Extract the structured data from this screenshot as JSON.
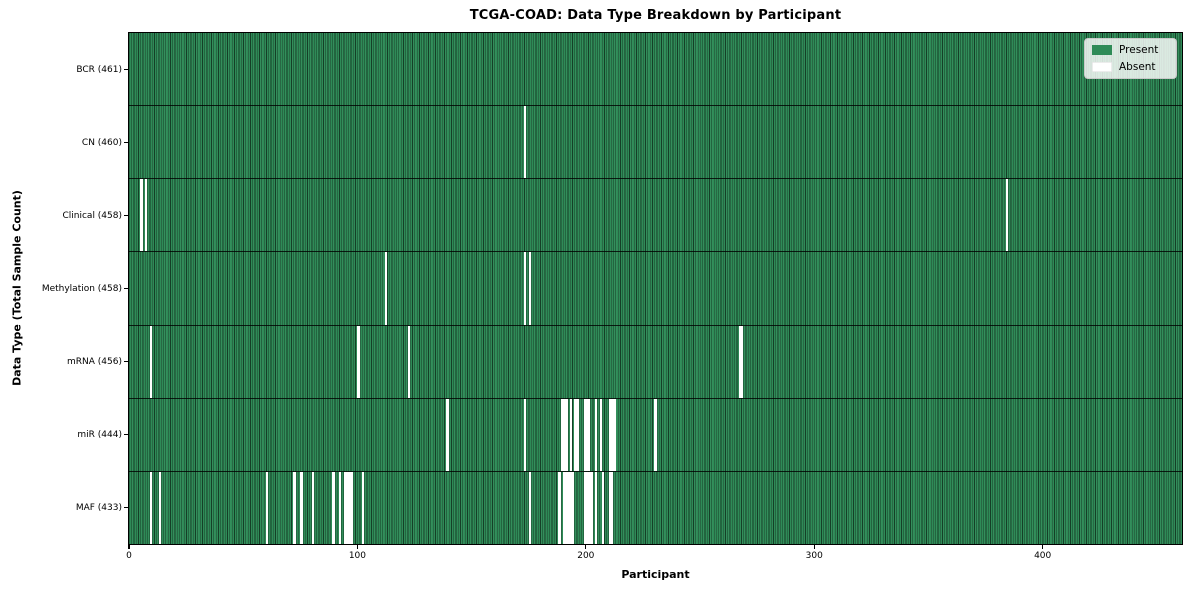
{
  "figure": {
    "title": "TCGA-COAD: Data Type Breakdown by Participant",
    "xlabel": "Participant",
    "ylabel": "Data Type (Total Sample Count)"
  },
  "chart_data": {
    "type": "heatmap",
    "title": "TCGA-COAD: Data Type Breakdown by Participant",
    "xlabel": "Participant",
    "ylabel": "Data Type (Total Sample Count)",
    "x_ticks": [
      0,
      100,
      200,
      300,
      400
    ],
    "x_range": [
      0,
      461
    ],
    "n_participants": 461,
    "grid": false,
    "legend_position": "upper right",
    "colors": {
      "present": "#2e8b57",
      "absent": "#ffffff",
      "bar_edge": "#173d28",
      "legend_background": "#eef2ee"
    },
    "legend": {
      "entries": [
        {
          "label": "Present",
          "color": "#2e8b57"
        },
        {
          "label": "Absent",
          "color": "#ffffff"
        }
      ]
    },
    "rows": [
      {
        "label": "BCR (461)",
        "data_type": "BCR",
        "total_samples": 461,
        "absent_participants": []
      },
      {
        "label": "CN (460)",
        "data_type": "CN",
        "total_samples": 460,
        "absent_participants": [
          173
        ]
      },
      {
        "label": "Clinical (458)",
        "data_type": "Clinical",
        "total_samples": 458,
        "absent_participants": [
          5,
          7,
          384
        ]
      },
      {
        "label": "Methylation (458)",
        "data_type": "Methylation",
        "total_samples": 458,
        "absent_participants": [
          112,
          173,
          175
        ]
      },
      {
        "label": "mRNA (456)",
        "data_type": "mRNA",
        "total_samples": 456,
        "absent_participants": [
          9,
          100,
          122,
          267,
          268
        ]
      },
      {
        "label": "miR (444)",
        "data_type": "miR",
        "total_samples": 444,
        "absent_participants": [
          139,
          173,
          189,
          190,
          191,
          193,
          195,
          196,
          199,
          200,
          201,
          204,
          206,
          210,
          211,
          212,
          230
        ]
      },
      {
        "label": "MAF (433)",
        "data_type": "MAF",
        "total_samples": 433,
        "absent_participants": [
          9,
          13,
          60,
          72,
          75,
          80,
          89,
          92,
          94,
          95,
          96,
          97,
          102,
          175,
          188,
          190,
          191,
          192,
          193,
          194,
          199,
          200,
          201,
          202,
          204,
          207,
          210,
          211
        ]
      }
    ]
  }
}
